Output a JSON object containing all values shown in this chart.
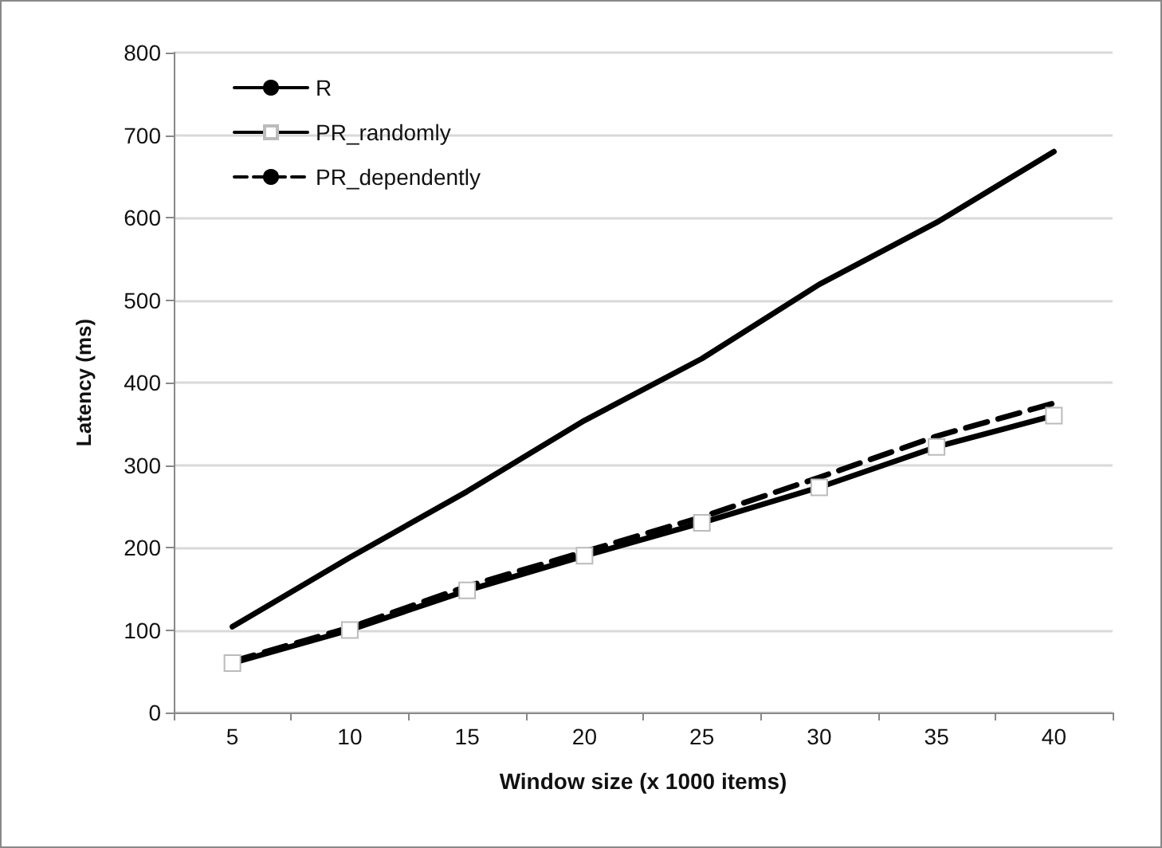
{
  "chart_data": {
    "type": "line",
    "xlabel": "Window size (x 1000 items)",
    "ylabel": "Latency (ms)",
    "categories": [
      "5",
      "10",
      "15",
      "20",
      "25",
      "30",
      "35",
      "40"
    ],
    "ylim": [
      0,
      800
    ],
    "yticks": [
      0,
      100,
      200,
      300,
      400,
      500,
      600,
      700,
      800
    ],
    "grid": "y",
    "legend": "top left",
    "series": [
      {
        "name": "R",
        "color": "#000000",
        "marker": "none",
        "line_style": "solid",
        "values": [
          104,
          188,
          268,
          354,
          429,
          519,
          594,
          680
        ]
      },
      {
        "name": "PR_randomly",
        "color": "#000000",
        "marker": "square",
        "line_style": "solid",
        "values": [
          60,
          100,
          148,
          190,
          230,
          273,
          322,
          360
        ]
      },
      {
        "name": "PR_dependently",
        "color": "#000000",
        "marker": "none",
        "line_style": "dashed",
        "values": [
          62,
          103,
          153,
          195,
          237,
          285,
          335,
          375
        ]
      }
    ]
  }
}
